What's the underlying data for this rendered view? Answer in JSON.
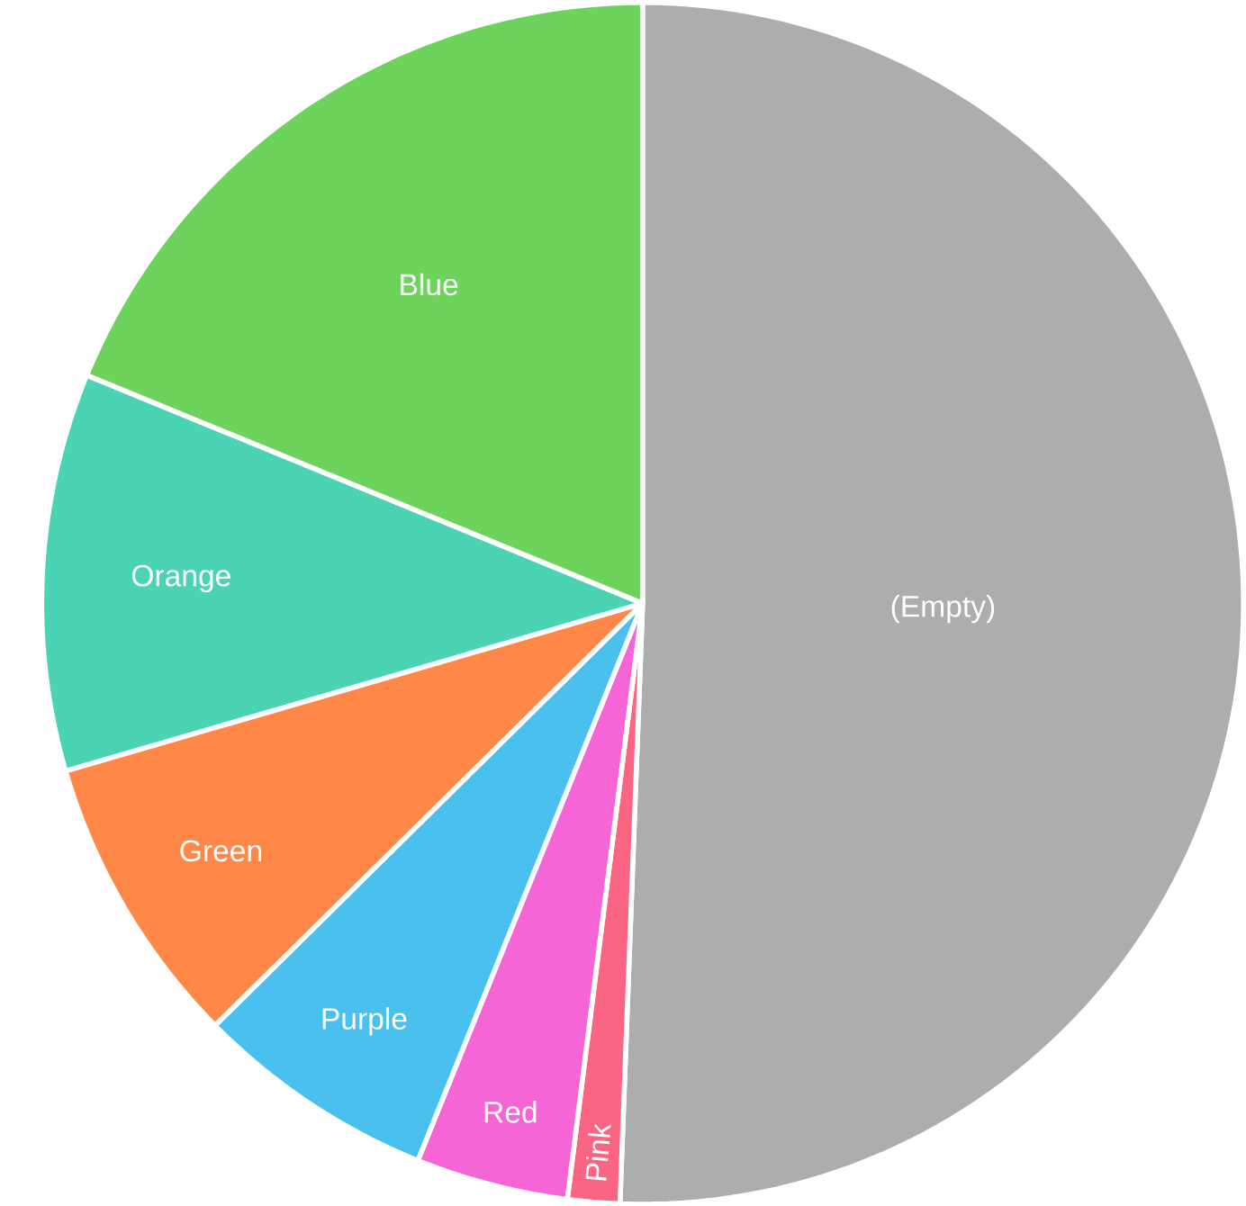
{
  "chart_data": {
    "type": "pie",
    "categories": [
      "(Empty)",
      "Pink",
      "Red",
      "Purple",
      "Green",
      "Orange",
      "Blue"
    ],
    "values": [
      50.6,
      1.4,
      4.1,
      6.5,
      7.9,
      10.7,
      18.8
    ],
    "colors": [
      "#adadad",
      "#fb6584",
      "#f565d6",
      "#4ac0ee",
      "#ff8748",
      "#4bd4b4",
      "#6dd35c"
    ]
  }
}
